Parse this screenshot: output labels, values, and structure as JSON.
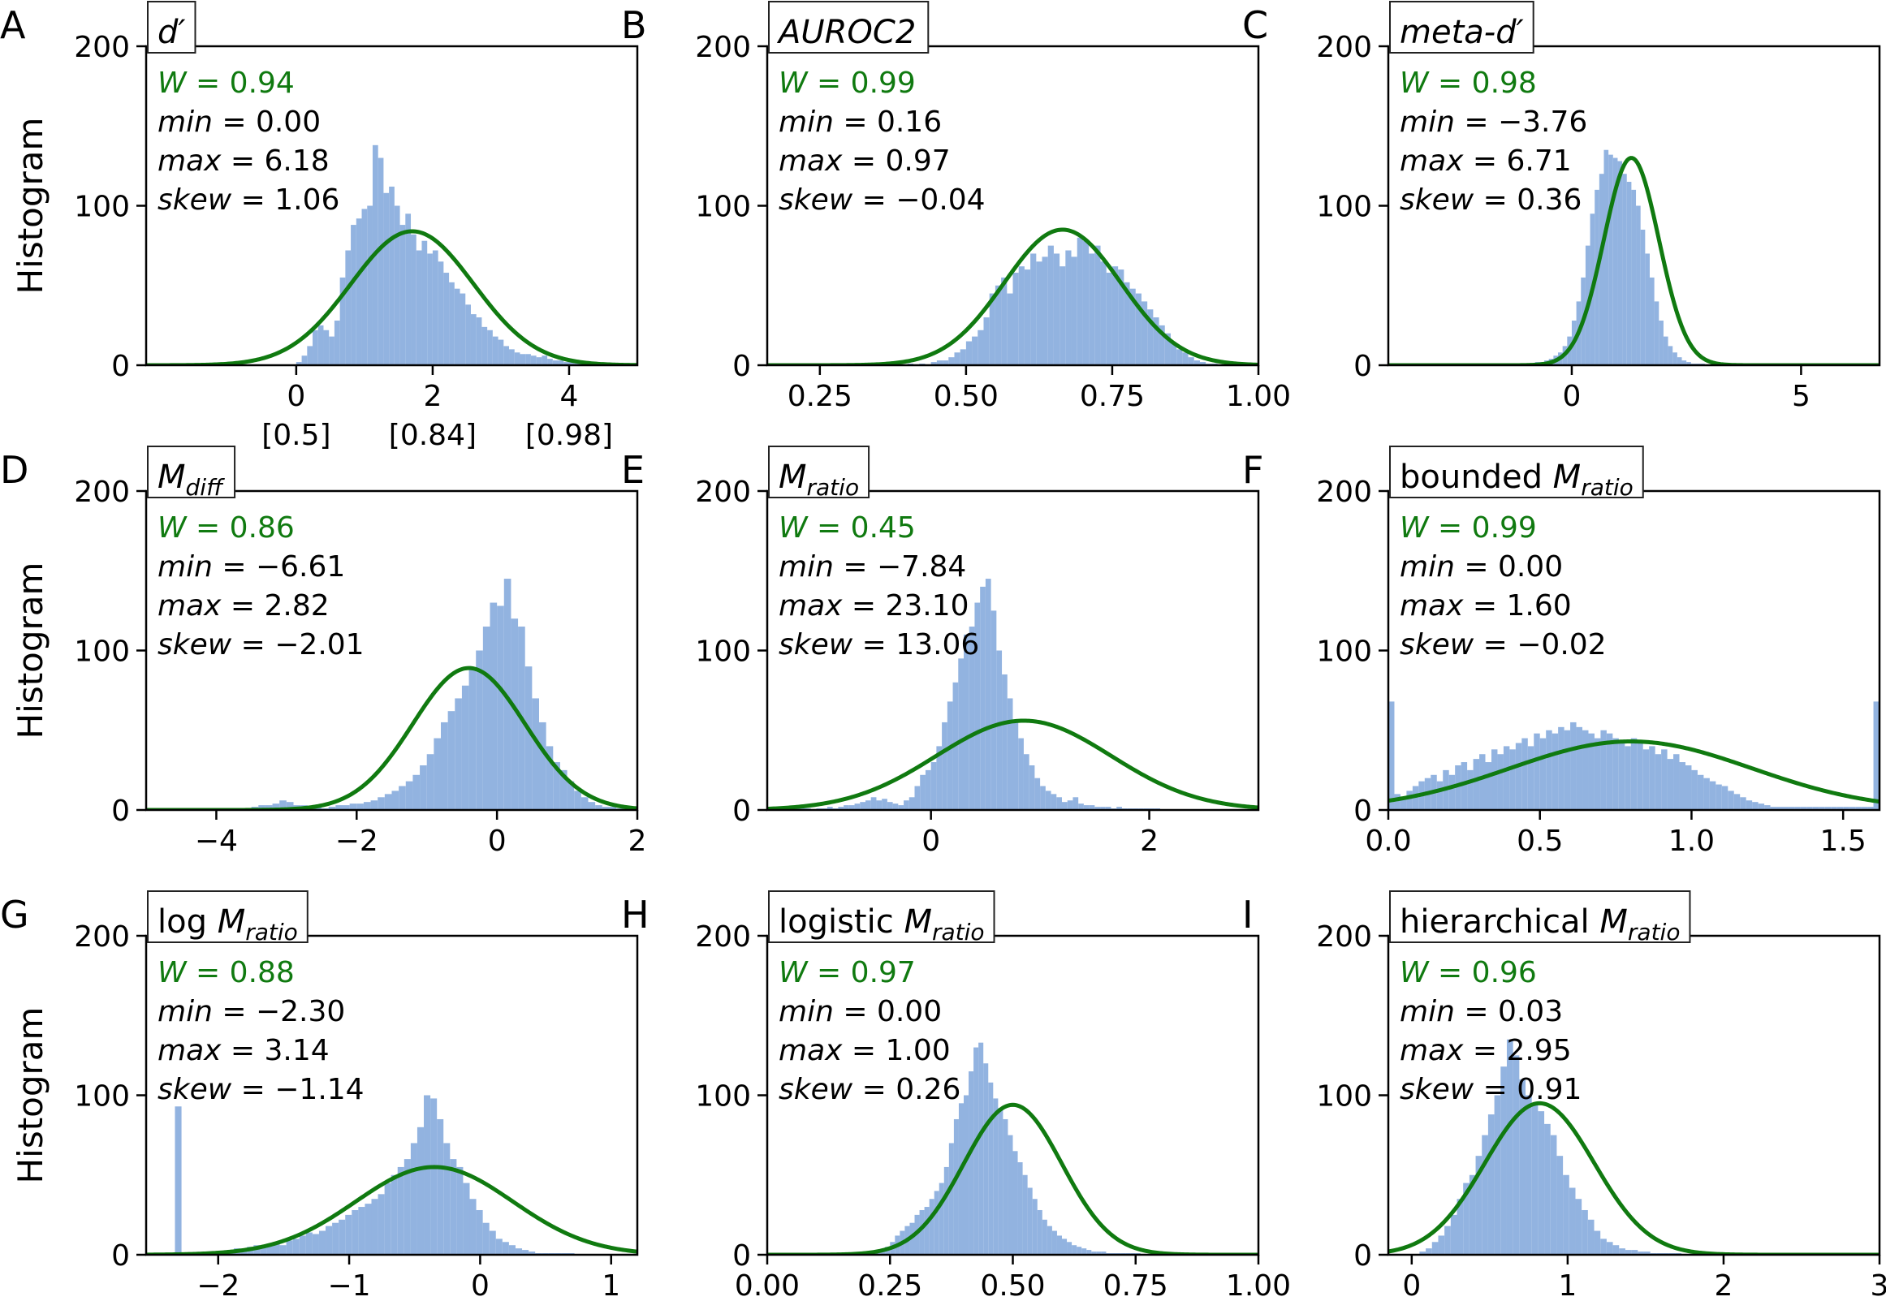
{
  "colors": {
    "bar": "#92b3e0",
    "fit": "#107a10",
    "axis": "#000000",
    "w_text": "#107a10"
  },
  "ylabel": "Histogram",
  "chart_data": [
    {
      "type": "bar",
      "panel": "A",
      "title_main": "d′",
      "title_sub": "",
      "title_prefix": "",
      "title_italic": true,
      "xlim": [
        -2.2,
        5.0
      ],
      "ylim": [
        0,
        200
      ],
      "xticks": [
        0,
        2,
        4
      ],
      "xtick_labels": [
        "0",
        "2",
        "4"
      ],
      "xtick_sublabels": [
        "[0.5]",
        "[0.84]",
        "[0.98]"
      ],
      "yticks": [
        0,
        100,
        200
      ],
      "ytick_labels": [
        "0",
        "100",
        "200"
      ],
      "stats": {
        "W": "0.94",
        "min": "0.00",
        "max": "6.18",
        "skew": "1.06"
      },
      "fit": {
        "mu": 1.7,
        "sigma": 0.9,
        "peak": 84
      },
      "hist": {
        "start": 0.0,
        "width": 0.08,
        "counts": [
          2,
          6,
          12,
          22,
          25,
          22,
          18,
          28,
          55,
          72,
          88,
          92,
          98,
          100,
          138,
          130,
          108,
          112,
          100,
          88,
          95,
          82,
          72,
          78,
          70,
          72,
          65,
          58,
          52,
          48,
          45,
          38,
          32,
          30,
          24,
          22,
          18,
          16,
          12,
          10,
          8,
          7,
          7,
          6,
          5,
          6,
          4,
          3,
          3,
          2,
          2,
          2,
          1,
          1,
          1,
          1,
          1,
          1,
          1,
          1,
          1
        ]
      }
    },
    {
      "type": "bar",
      "panel": "B",
      "title_main": "AUROC2",
      "title_sub": "",
      "title_prefix": "",
      "title_italic": true,
      "xlim": [
        0.16,
        1.0
      ],
      "ylim": [
        0,
        200
      ],
      "xticks": [
        0.25,
        0.5,
        0.75,
        1.0
      ],
      "xtick_labels": [
        "0.25",
        "0.50",
        "0.75",
        "1.00"
      ],
      "xtick_sublabels": [],
      "yticks": [
        0,
        100,
        200
      ],
      "ytick_labels": [
        "0",
        "100",
        "200"
      ],
      "stats": {
        "W": "0.99",
        "min": "0.16",
        "max": "0.97",
        "skew": "−0.04"
      },
      "fit": {
        "mu": 0.665,
        "sigma": 0.1,
        "peak": 85
      },
      "hist": {
        "start": 0.16,
        "width": 0.01,
        "counts": [
          0,
          0,
          0,
          0,
          0,
          0,
          0,
          0,
          0,
          0,
          0,
          0,
          0,
          0,
          0,
          0,
          0,
          0,
          0,
          0,
          0,
          0,
          0,
          0,
          1,
          0,
          1,
          0,
          2,
          3,
          3,
          5,
          8,
          10,
          15,
          18,
          22,
          30,
          45,
          50,
          55,
          45,
          58,
          62,
          60,
          70,
          65,
          68,
          75,
          70,
          62,
          72,
          68,
          80,
          78,
          70,
          75,
          65,
          58,
          62,
          60,
          52,
          48,
          45,
          40,
          35,
          30,
          25,
          20,
          14,
          10,
          8,
          5,
          3,
          2,
          1,
          1,
          0,
          0,
          0,
          0,
          0,
          0,
          0
        ]
      }
    },
    {
      "type": "bar",
      "panel": "C",
      "title_main": "meta-d′",
      "title_sub": "",
      "title_prefix": "",
      "title_italic": true,
      "xlim": [
        -4.0,
        6.71
      ],
      "ylim": [
        0,
        200
      ],
      "xticks": [
        0,
        5
      ],
      "xtick_labels": [
        "0",
        "5"
      ],
      "xtick_sublabels": [],
      "yticks": [
        0,
        100,
        200
      ],
      "ytick_labels": [
        "0",
        "100",
        "200"
      ],
      "stats": {
        "W": "0.98",
        "min": "−3.76",
        "max": "6.71",
        "skew": "0.36"
      },
      "fit": {
        "mu": 1.3,
        "sigma": 0.6,
        "peak": 130
      },
      "hist": {
        "start": -1.0,
        "width": 0.1,
        "counts": [
          1,
          1,
          2,
          2,
          3,
          4,
          6,
          8,
          12,
          18,
          28,
          40,
          55,
          75,
          95,
          110,
          120,
          135,
          132,
          130,
          128,
          120,
          115,
          110,
          100,
          85,
          70,
          55,
          40,
          28,
          18,
          12,
          8,
          5,
          3,
          2,
          1,
          1,
          1
        ]
      }
    },
    {
      "type": "bar",
      "panel": "D",
      "title_main": "M",
      "title_sub": "diff",
      "title_prefix": "",
      "title_italic": true,
      "xlim": [
        -5.0,
        2.0
      ],
      "ylim": [
        0,
        200
      ],
      "xticks": [
        -4,
        -2,
        0,
        2
      ],
      "xtick_labels": [
        "−4",
        "−2",
        "0",
        "2"
      ],
      "xtick_sublabels": [],
      "yticks": [
        0,
        100,
        200
      ],
      "ytick_labels": [
        "0",
        "100",
        "200"
      ],
      "stats": {
        "W": "0.86",
        "min": "−6.61",
        "max": "2.82",
        "skew": "−2.01"
      },
      "fit": {
        "mu": -0.4,
        "sigma": 0.8,
        "peak": 89
      },
      "hist": {
        "start": -4.8,
        "width": 0.1,
        "counts": [
          1,
          1,
          1,
          1,
          1,
          1,
          1,
          0,
          1,
          1,
          1,
          1,
          1,
          2,
          3,
          3,
          4,
          6,
          5,
          3,
          3,
          2,
          2,
          1,
          2,
          3,
          3,
          4,
          4,
          5,
          6,
          8,
          10,
          12,
          15,
          18,
          22,
          28,
          35,
          45,
          55,
          62,
          70,
          78,
          88,
          100,
          115,
          130,
          128,
          145,
          120,
          115,
          90,
          70,
          55,
          40,
          30,
          25,
          18,
          12,
          8,
          5,
          3,
          2,
          2,
          1,
          1,
          1
        ]
      }
    },
    {
      "type": "bar",
      "panel": "E",
      "title_main": "M",
      "title_sub": "ratio",
      "title_prefix": "",
      "title_italic": true,
      "xlim": [
        -1.5,
        3.0
      ],
      "ylim": [
        0,
        200
      ],
      "xticks": [
        0,
        2
      ],
      "xtick_labels": [
        "0",
        "2"
      ],
      "xtick_sublabels": [],
      "yticks": [
        0,
        100,
        200
      ],
      "ytick_labels": [
        "0",
        "100",
        "200"
      ],
      "stats": {
        "W": "0.45",
        "min": "−7.84",
        "max": "23.10",
        "skew": "13.06"
      },
      "fit": {
        "mu": 0.85,
        "sigma": 0.8,
        "peak": 56
      },
      "hist": {
        "start": -1.3,
        "width": 0.05,
        "counts": [
          1,
          1,
          1,
          1,
          0,
          1,
          1,
          2,
          1,
          2,
          3,
          3,
          4,
          5,
          6,
          8,
          6,
          7,
          5,
          4,
          3,
          6,
          8,
          15,
          22,
          25,
          30,
          40,
          55,
          68,
          80,
          95,
          110,
          115,
          130,
          140,
          145,
          125,
          100,
          85,
          70,
          55,
          45,
          35,
          28,
          20,
          15,
          12,
          10,
          8,
          5,
          6,
          8,
          4,
          3,
          3,
          2,
          2,
          2,
          1,
          2,
          1,
          1,
          1,
          1,
          1,
          1,
          1
        ]
      }
    },
    {
      "type": "bar",
      "panel": "F",
      "title_main": "M",
      "title_sub": "ratio",
      "title_prefix": "bounded ",
      "title_italic": true,
      "xlim": [
        0.0,
        1.62
      ],
      "ylim": [
        0,
        200
      ],
      "xticks": [
        0.0,
        0.5,
        1.0,
        1.5
      ],
      "xtick_labels": [
        "0.0",
        "0.5",
        "1.0",
        "1.5"
      ],
      "xtick_sublabels": [],
      "yticks": [
        0,
        100,
        200
      ],
      "ytick_labels": [
        "0",
        "100",
        "200"
      ],
      "stats": {
        "W": "0.99",
        "min": "0.00",
        "max": "1.60",
        "skew": "−0.02"
      },
      "fit": {
        "mu": 0.8,
        "sigma": 0.4,
        "peak": 43
      },
      "hist": {
        "start": 0.0,
        "width": 0.02,
        "counts": [
          68,
          10,
          8,
          12,
          15,
          18,
          20,
          22,
          18,
          25,
          22,
          28,
          30,
          25,
          32,
          35,
          30,
          38,
          35,
          40,
          38,
          42,
          45,
          40,
          48,
          45,
          50,
          48,
          52,
          50,
          55,
          52,
          50,
          48,
          45,
          50,
          48,
          45,
          42,
          40,
          45,
          42,
          38,
          40,
          35,
          38,
          32,
          35,
          30,
          28,
          25,
          22,
          20,
          18,
          16,
          15,
          12,
          10,
          8,
          6,
          5,
          4,
          3,
          2,
          2,
          2,
          2,
          2,
          2,
          2,
          2,
          2,
          2,
          2,
          2,
          2,
          2,
          2,
          2,
          2,
          68
        ]
      }
    },
    {
      "type": "bar",
      "panel": "G",
      "title_main": "M",
      "title_sub": "ratio",
      "title_prefix": "log ",
      "title_italic": true,
      "xlim": [
        -2.55,
        1.2
      ],
      "ylim": [
        0,
        200
      ],
      "xticks": [
        -2,
        -1,
        0,
        1
      ],
      "xtick_labels": [
        "−2",
        "−1",
        "0",
        "1"
      ],
      "xtick_sublabels": [],
      "yticks": [
        0,
        100,
        200
      ],
      "ytick_labels": [
        "0",
        "100",
        "200"
      ],
      "stats": {
        "W": "0.88",
        "min": "−2.30",
        "max": "3.14",
        "skew": "−1.14"
      },
      "fit": {
        "mu": -0.35,
        "sigma": 0.6,
        "peak": 55
      },
      "hist": {
        "start": -2.33,
        "width": 0.05,
        "counts": [
          93,
          0,
          0,
          0,
          1,
          1,
          2,
          2,
          3,
          4,
          3,
          5,
          6,
          5,
          7,
          8,
          6,
          9,
          10,
          12,
          14,
          13,
          15,
          18,
          20,
          22,
          25,
          28,
          30,
          32,
          35,
          38,
          45,
          50,
          55,
          60,
          70,
          80,
          100,
          98,
          85,
          70,
          60,
          55,
          45,
          35,
          28,
          20,
          15,
          10,
          8,
          6,
          4,
          3,
          2,
          1,
          1,
          1,
          1,
          1,
          1
        ]
      }
    },
    {
      "type": "bar",
      "panel": "H",
      "title_main": "M",
      "title_sub": "ratio",
      "title_prefix": "logistic ",
      "title_italic": true,
      "xlim": [
        0.0,
        1.0
      ],
      "ylim": [
        0,
        200
      ],
      "xticks": [
        0.0,
        0.25,
        0.5,
        0.75,
        1.0
      ],
      "xtick_labels": [
        "0.00",
        "0.25",
        "0.50",
        "0.75",
        "1.00"
      ],
      "xtick_sublabels": [],
      "yticks": [
        0,
        100,
        200
      ],
      "ytick_labels": [
        "0",
        "100",
        "200"
      ],
      "stats": {
        "W": "0.97",
        "min": "0.00",
        "max": "1.00",
        "skew": "0.26"
      },
      "fit": {
        "mu": 0.5,
        "sigma": 0.1,
        "peak": 94
      },
      "hist": {
        "start": 0.2,
        "width": 0.01,
        "counts": [
          1,
          1,
          2,
          3,
          5,
          8,
          12,
          15,
          18,
          20,
          25,
          28,
          30,
          35,
          40,
          45,
          55,
          70,
          85,
          95,
          100,
          115,
          130,
          133,
          120,
          108,
          98,
          92,
          85,
          75,
          65,
          58,
          50,
          42,
          35,
          28,
          22,
          18,
          15,
          12,
          10,
          8,
          6,
          5,
          4,
          3,
          2,
          2,
          2,
          1,
          1,
          1,
          1,
          1,
          1,
          1
        ]
      }
    },
    {
      "type": "bar",
      "panel": "I",
      "title_main": "M",
      "title_sub": "ratio",
      "title_prefix": "hierarchical ",
      "title_italic": true,
      "xlim": [
        -0.15,
        3.0
      ],
      "ylim": [
        0,
        200
      ],
      "xticks": [
        0,
        1,
        2,
        3
      ],
      "xtick_labels": [
        "0",
        "1",
        "2",
        "3"
      ],
      "xtick_sublabels": [],
      "yticks": [
        0,
        100,
        200
      ],
      "ytick_labels": [
        "0",
        "100",
        "200"
      ],
      "stats": {
        "W": "0.96",
        "min": "0.03",
        "max": "2.95",
        "skew": "0.91"
      },
      "fit": {
        "mu": 0.82,
        "sigma": 0.35,
        "peak": 95
      },
      "hist": {
        "start": 0.05,
        "width": 0.04,
        "counts": [
          2,
          4,
          8,
          12,
          18,
          25,
          35,
          45,
          50,
          62,
          75,
          88,
          100,
          118,
          135,
          125,
          110,
          100,
          95,
          90,
          82,
          75,
          62,
          50,
          42,
          35,
          28,
          22,
          15,
          10,
          8,
          6,
          4,
          3,
          3,
          2,
          2,
          1,
          1,
          1,
          1,
          1
        ]
      }
    }
  ]
}
